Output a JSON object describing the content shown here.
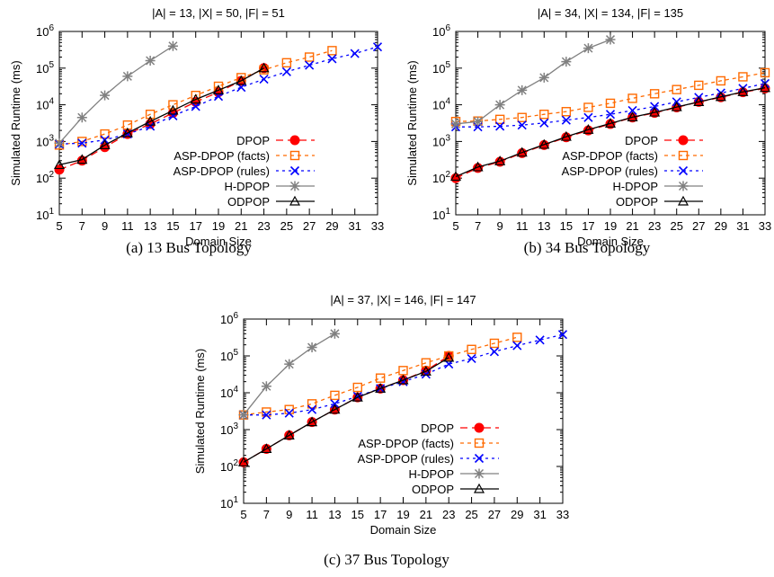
{
  "chart_data": [
    {
      "type": "line",
      "title": "|A| = 13, |X| = 50, |F| = 51",
      "caption": "(a) 13 Bus Topology",
      "xlabel": "Domain Size",
      "ylabel": "Simulated Runtime (ms)",
      "yscale": "log",
      "xlim": [
        5,
        33
      ],
      "ylim": [
        10,
        1000000
      ],
      "x_ticks": [
        "5",
        "7",
        "9",
        "11",
        "13",
        "15",
        "17",
        "19",
        "21",
        "23",
        "25",
        "27",
        "29",
        "31",
        "33"
      ],
      "y_ticks": [
        {
          "value": 10,
          "base": "10",
          "exp": "1"
        },
        {
          "value": 100,
          "base": "10",
          "exp": "2"
        },
        {
          "value": 1000,
          "base": "10",
          "exp": "3"
        },
        {
          "value": 10000,
          "base": "10",
          "exp": "4"
        },
        {
          "value": 100000,
          "base": "10",
          "exp": "5"
        },
        {
          "value": 1000000,
          "base": "10",
          "exp": "6"
        }
      ],
      "legend_position": "right",
      "series": [
        {
          "name": "DPOP",
          "color": "#ff0000",
          "marker": "filled-circle",
          "dash": "8,5",
          "x": [
            5,
            7,
            9,
            11,
            13,
            15,
            17,
            19,
            21,
            23
          ],
          "y": [
            170,
            300,
            700,
            1600,
            3000,
            6000,
            12000,
            22000,
            45000,
            100000
          ]
        },
        {
          "name": "ASP-DPOP (facts)",
          "color": "#ff6a00",
          "marker": "open-square",
          "dash": "4,4",
          "x": [
            5,
            7,
            9,
            11,
            13,
            15,
            17,
            19,
            21,
            23,
            25,
            27,
            29
          ],
          "y": [
            800,
            1000,
            1600,
            2800,
            5500,
            10000,
            18000,
            32000,
            55000,
            90000,
            140000,
            200000,
            300000
          ]
        },
        {
          "name": "ASP-DPOP (rules)",
          "color": "#0000ff",
          "marker": "cross",
          "dash": "3,4",
          "x": [
            5,
            7,
            9,
            11,
            13,
            15,
            17,
            19,
            21,
            23,
            25,
            27,
            29,
            31,
            33
          ],
          "y": [
            850,
            900,
            1100,
            1600,
            2600,
            5000,
            9000,
            17000,
            30000,
            50000,
            80000,
            120000,
            180000,
            250000,
            380000
          ]
        },
        {
          "name": "H-DPOP",
          "color": "#808080",
          "marker": "star",
          "dash": "",
          "x": [
            5,
            7,
            9,
            11,
            13,
            15
          ],
          "y": [
            900,
            4500,
            18000,
            60000,
            160000,
            400000
          ]
        },
        {
          "name": "ODPOP",
          "color": "#000000",
          "marker": "open-triangle",
          "dash": "",
          "x": [
            5,
            7,
            9,
            11,
            13,
            15,
            17,
            19,
            21,
            23
          ],
          "y": [
            230,
            320,
            800,
            1700,
            3500,
            7000,
            14000,
            25000,
            45000,
            100000
          ]
        }
      ]
    },
    {
      "type": "line",
      "title": "|A| = 34, |X| = 134, |F| = 135",
      "caption": "(b) 34 Bus Topology",
      "xlabel": "Domain Size",
      "ylabel": "Simulated Runtime (ms)",
      "yscale": "log",
      "xlim": [
        5,
        33
      ],
      "ylim": [
        10,
        1000000
      ],
      "x_ticks": [
        "5",
        "7",
        "9",
        "11",
        "13",
        "15",
        "17",
        "19",
        "21",
        "23",
        "25",
        "27",
        "29",
        "31",
        "33"
      ],
      "y_ticks": [
        {
          "value": 10,
          "base": "10",
          "exp": "1"
        },
        {
          "value": 100,
          "base": "10",
          "exp": "2"
        },
        {
          "value": 1000,
          "base": "10",
          "exp": "3"
        },
        {
          "value": 10000,
          "base": "10",
          "exp": "4"
        },
        {
          "value": 100000,
          "base": "10",
          "exp": "5"
        },
        {
          "value": 1000000,
          "base": "10",
          "exp": "6"
        }
      ],
      "legend_position": "right",
      "series": [
        {
          "name": "DPOP",
          "color": "#ff0000",
          "marker": "filled-circle",
          "dash": "8,5",
          "x": [
            5,
            7,
            9,
            11,
            13,
            15,
            17,
            19,
            21,
            23,
            25,
            27,
            29,
            31,
            33
          ],
          "y": [
            100,
            190,
            280,
            480,
            800,
            1300,
            2000,
            3000,
            4500,
            6000,
            8500,
            12000,
            16000,
            22000,
            28000
          ]
        },
        {
          "name": "ASP-DPOP (facts)",
          "color": "#ff6a00",
          "marker": "open-square",
          "dash": "4,4",
          "x": [
            5,
            7,
            9,
            11,
            13,
            15,
            17,
            19,
            21,
            23,
            25,
            27,
            29,
            31,
            33
          ],
          "y": [
            3500,
            3600,
            4000,
            4500,
            5500,
            6500,
            8500,
            11000,
            15000,
            20000,
            26000,
            34000,
            45000,
            58000,
            75000
          ]
        },
        {
          "name": "ASP-DPOP (rules)",
          "color": "#0000ff",
          "marker": "cross",
          "dash": "3,4",
          "x": [
            5,
            7,
            9,
            11,
            13,
            15,
            17,
            19,
            21,
            23,
            25,
            27,
            29,
            31,
            33
          ],
          "y": [
            2500,
            2500,
            2600,
            2800,
            3200,
            3800,
            4500,
            5500,
            7000,
            9000,
            12000,
            16000,
            21000,
            28000,
            38000
          ]
        },
        {
          "name": "H-DPOP",
          "color": "#808080",
          "marker": "star",
          "dash": "",
          "x": [
            5,
            7,
            9,
            11,
            13,
            15,
            17,
            19
          ],
          "y": [
            3000,
            3500,
            10000,
            25000,
            55000,
            150000,
            350000,
            600000
          ]
        },
        {
          "name": "ODPOP",
          "color": "#000000",
          "marker": "open-triangle",
          "dash": "",
          "x": [
            5,
            7,
            9,
            11,
            13,
            15,
            17,
            19,
            21,
            23,
            25,
            27,
            29,
            31,
            33
          ],
          "y": [
            110,
            200,
            290,
            500,
            820,
            1350,
            2100,
            3100,
            4600,
            6200,
            8700,
            12000,
            16500,
            22500,
            29000
          ]
        }
      ]
    },
    {
      "type": "line",
      "title": "|A| = 37, |X| = 146, |F| = 147",
      "caption": "(c) 37 Bus Topology",
      "xlabel": "Domain Size",
      "ylabel": "Simulated Runtime (ms)",
      "yscale": "log",
      "xlim": [
        5,
        33
      ],
      "ylim": [
        10,
        1000000
      ],
      "x_ticks": [
        "5",
        "7",
        "9",
        "11",
        "13",
        "15",
        "17",
        "19",
        "21",
        "23",
        "25",
        "27",
        "29",
        "31",
        "33"
      ],
      "y_ticks": [
        {
          "value": 10,
          "base": "10",
          "exp": "1"
        },
        {
          "value": 100,
          "base": "10",
          "exp": "2"
        },
        {
          "value": 1000,
          "base": "10",
          "exp": "3"
        },
        {
          "value": 10000,
          "base": "10",
          "exp": "4"
        },
        {
          "value": 100000,
          "base": "10",
          "exp": "5"
        },
        {
          "value": 1000000,
          "base": "10",
          "exp": "6"
        }
      ],
      "legend_position": "right",
      "series": [
        {
          "name": "DPOP",
          "color": "#ff0000",
          "marker": "filled-circle",
          "dash": "8,5",
          "x": [
            5,
            7,
            9,
            11,
            13,
            15,
            17,
            19,
            21,
            23
          ],
          "y": [
            130,
            300,
            700,
            1600,
            3500,
            7500,
            13000,
            22000,
            40000,
            100000
          ]
        },
        {
          "name": "ASP-DPOP (facts)",
          "color": "#ff6a00",
          "marker": "open-square",
          "dash": "4,4",
          "x": [
            5,
            7,
            9,
            11,
            13,
            15,
            17,
            19,
            21,
            23,
            25,
            27,
            29
          ],
          "y": [
            2500,
            3000,
            3500,
            5000,
            8500,
            14000,
            25000,
            40000,
            65000,
            100000,
            150000,
            220000,
            320000
          ]
        },
        {
          "name": "ASP-DPOP (rules)",
          "color": "#0000ff",
          "marker": "cross",
          "dash": "3,4",
          "x": [
            5,
            7,
            9,
            11,
            13,
            15,
            17,
            19,
            21,
            23,
            25,
            27,
            29,
            31,
            33
          ],
          "y": [
            2500,
            2500,
            2800,
            3500,
            5000,
            8000,
            13000,
            20000,
            32000,
            60000,
            85000,
            130000,
            190000,
            270000,
            380000
          ]
        },
        {
          "name": "H-DPOP",
          "color": "#808080",
          "marker": "star",
          "dash": "",
          "x": [
            5,
            7,
            9,
            11,
            13
          ],
          "y": [
            2500,
            15000,
            60000,
            170000,
            400000
          ]
        },
        {
          "name": "ODPOP",
          "color": "#000000",
          "marker": "open-triangle",
          "dash": "",
          "x": [
            5,
            7,
            9,
            11,
            13,
            15,
            17,
            19,
            21,
            23
          ],
          "y": [
            130,
            300,
            700,
            1600,
            3500,
            7500,
            13000,
            22000,
            38000,
            90000
          ]
        }
      ]
    }
  ]
}
